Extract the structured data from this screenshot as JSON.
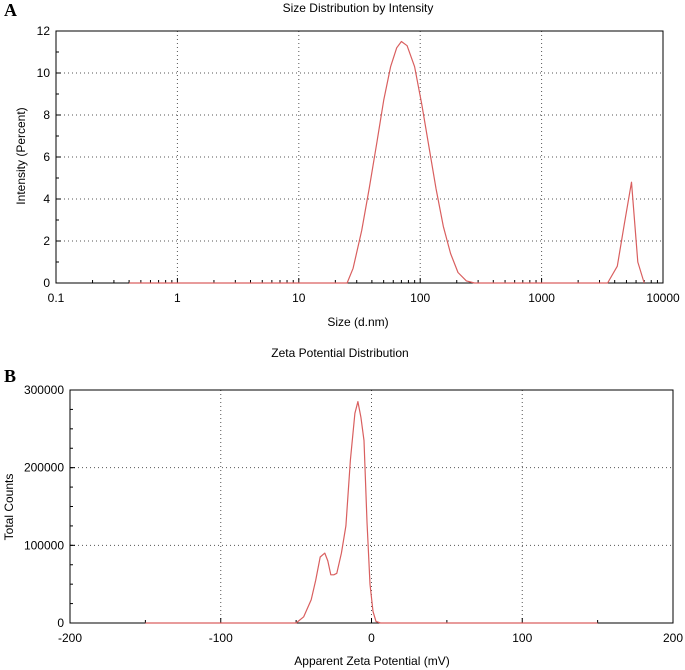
{
  "panels": [
    {
      "letter": "A",
      "chart_data": {
        "type": "line",
        "title": "Size Distribution by Intensity",
        "xlabel": "Size (d.nm)",
        "ylabel": "Intensity (Percent)",
        "xscale": "log",
        "xlim": [
          0.1,
          10000
        ],
        "ylim": [
          0,
          12
        ],
        "xticks": [
          0.1,
          1,
          10,
          100,
          1000,
          10000
        ],
        "xtick_labels": [
          "0.1",
          "1",
          "10",
          "100",
          "1000",
          "10000"
        ],
        "yticks": [
          0,
          2,
          4,
          6,
          8,
          10,
          12
        ],
        "ytick_labels": [
          "0",
          "2",
          "4",
          "6",
          "8",
          "10",
          "12"
        ],
        "grid": true,
        "color": "#d95f5f",
        "series": [
          {
            "x": [
              0.4,
              25,
              28,
              33,
              38,
              44,
              50,
              57,
              64,
              70,
              78,
              90,
              103,
              118,
              135,
              155,
              178,
              205,
              240,
              280,
              3500,
              4200,
              4800,
              5500,
              6200,
              7000
            ],
            "y": [
              0,
              0,
              0.7,
              2.5,
              4.5,
              6.7,
              8.7,
              10.3,
              11.2,
              11.5,
              11.3,
              10.3,
              8.5,
              6.5,
              4.5,
              2.7,
              1.4,
              0.5,
              0.1,
              0,
              0,
              0.8,
              2.8,
              4.8,
              1.0,
              0
            ]
          }
        ]
      }
    },
    {
      "letter": "B",
      "chart_data": {
        "type": "line",
        "title": "Zeta Potential Distribution",
        "xlabel": "Apparent Zeta Potential (mV)",
        "ylabel": "Total Counts",
        "xlim": [
          -200,
          200
        ],
        "ylim": [
          0,
          300000
        ],
        "xticks": [
          -200,
          -100,
          0,
          100,
          200
        ],
        "xtick_labels": [
          "-200",
          "-100",
          "0",
          "100",
          "200"
        ],
        "yticks": [
          0,
          100000,
          200000,
          300000
        ],
        "ytick_labels": [
          "0",
          "100000",
          "200000",
          "300000"
        ],
        "grid": true,
        "color": "#d95f5f",
        "series": [
          {
            "x": [
              -150,
              -50,
              -45,
              -40,
              -37,
              -34,
              -31,
              -29,
              -27,
              -25,
              -23,
              -20,
              -17,
              -14,
              -11,
              -9,
              -7,
              -5,
              -3,
              -1,
              1,
              3,
              6,
              150
            ],
            "y": [
              0,
              0,
              8000,
              30000,
              55000,
              85000,
              90000,
              80000,
              62000,
              62000,
              64000,
              90000,
              125000,
              210000,
              270000,
              285000,
              265000,
              235000,
              130000,
              50000,
              15000,
              2000,
              0,
              0
            ]
          }
        ]
      }
    }
  ]
}
